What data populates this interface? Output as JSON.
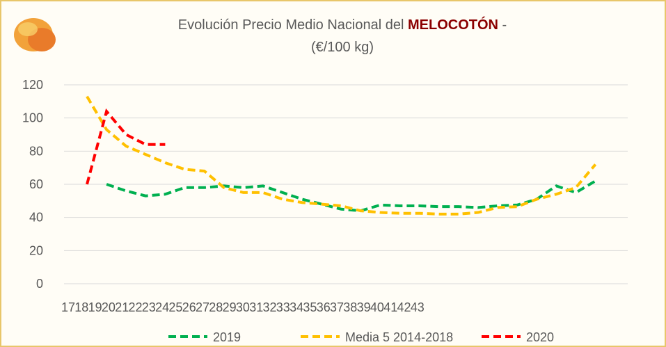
{
  "chart_data": {
    "type": "line",
    "title_parts": [
      "Evolución Precio Medio Nacional del ",
      "MELOCOTÓN",
      " -"
    ],
    "subtitle": "(€/100 kg)",
    "categories": [
      "17",
      "18",
      "19",
      "20",
      "21",
      "22",
      "23",
      "24",
      "25",
      "26",
      "27",
      "28",
      "29",
      "30",
      "31",
      "32",
      "33",
      "34",
      "35",
      "36",
      "37",
      "38",
      "39",
      "40",
      "41",
      "42",
      "43"
    ],
    "series": [
      {
        "name": "2019",
        "color": "#00b050",
        "values": [
          null,
          60,
          56,
          53,
          54,
          58,
          58,
          59,
          58,
          59,
          55,
          51,
          48,
          45,
          44,
          47.5,
          47,
          47,
          46.5,
          46.5,
          46,
          47,
          47.5,
          51,
          59,
          55,
          62
        ]
      },
      {
        "name": "Media 5 2014-2018",
        "color": "#ffc000",
        "values": [
          113,
          93,
          83,
          78,
          73,
          69,
          68,
          58,
          55,
          55,
          51,
          49,
          48,
          47,
          44,
          43,
          42.5,
          42.5,
          42,
          42,
          43,
          46,
          46.5,
          51,
          54,
          58,
          72
        ]
      },
      {
        "name": "2020",
        "color": "#ff0000",
        "values": [
          60,
          104,
          90,
          84,
          84,
          null,
          null,
          null,
          null,
          null,
          null,
          null,
          null,
          null,
          null,
          null,
          null,
          null,
          null,
          null,
          null,
          null,
          null,
          null,
          null,
          null,
          null
        ]
      }
    ],
    "ylim": [
      0,
      120
    ],
    "yticks": [
      0,
      20,
      40,
      60,
      80,
      100,
      120
    ],
    "grid": true
  }
}
